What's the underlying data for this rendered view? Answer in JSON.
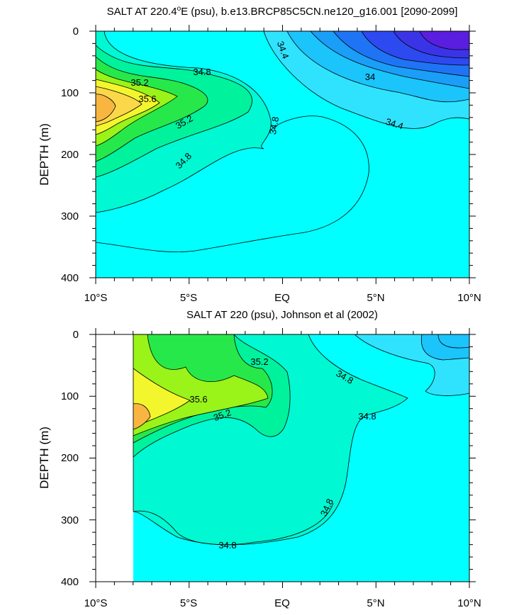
{
  "chart_data": [
    {
      "type": "contour",
      "title_prefix": "SALT AT 220.4",
      "title_sup": "o",
      "title_suffix": "E (psu), b.e13.BRCP85C5CN.ne120_g16.001 [2090-2099]",
      "ylabel": "DEPTH (m)",
      "xticks": [
        "10°S",
        "5°S",
        "EQ",
        "5°N",
        "10°N"
      ],
      "x_range": [
        -10,
        10
      ],
      "yticks": [
        "0",
        "100",
        "200",
        "300",
        "400"
      ],
      "y_range": [
        0,
        400
      ],
      "y_reversed": true,
      "contour_levels": [
        33.2,
        33.4,
        33.6,
        33.8,
        34.0,
        34.2,
        34.4,
        34.6,
        34.8,
        35.0,
        35.2,
        35.4,
        35.6,
        35.8
      ],
      "contour_labels": [
        "34.4",
        "34",
        "34.4",
        "34.8",
        "35.2",
        "35.6",
        "35.2",
        "34.8",
        "34.8"
      ],
      "field_features": {
        "subsurface_max": {
          "lat": -9,
          "depth": 135,
          "value": 35.9
        },
        "fresh_surface_min": {
          "lat": 9,
          "depth": 10,
          "value": 33.2
        }
      }
    },
    {
      "type": "contour",
      "title": "SALT AT 220 (psu), Johnson et al (2002)",
      "ylabel": "DEPTH (m)",
      "xticks": [
        "10°S",
        "5°S",
        "EQ",
        "5°N",
        "10°N"
      ],
      "x_range": [
        -10,
        10
      ],
      "yticks": [
        "0",
        "100",
        "200",
        "300",
        "400"
      ],
      "y_range": [
        0,
        400
      ],
      "y_reversed": true,
      "data_lat_range": [
        -8,
        10
      ],
      "contour_levels": [
        34.6,
        34.8,
        35.0,
        35.2,
        35.4,
        35.6,
        35.8
      ],
      "contour_labels": [
        "35.2",
        "34.8",
        "35.6",
        "35.2",
        "34.8",
        "34.8",
        "34.8"
      ],
      "field_features": {
        "subsurface_max": {
          "lat": -7.5,
          "depth": 125,
          "value": 35.85
        }
      }
    }
  ],
  "palette": [
    "#5a1ee0",
    "#2d49f0",
    "#1f74f5",
    "#1a9ef8",
    "#1bc4fb",
    "#2fe3ff",
    "#00ffff",
    "#00f8d2",
    "#00f29c",
    "#27e84a",
    "#9af319",
    "#f4f62d",
    "#fbd84a",
    "#f8b640"
  ]
}
